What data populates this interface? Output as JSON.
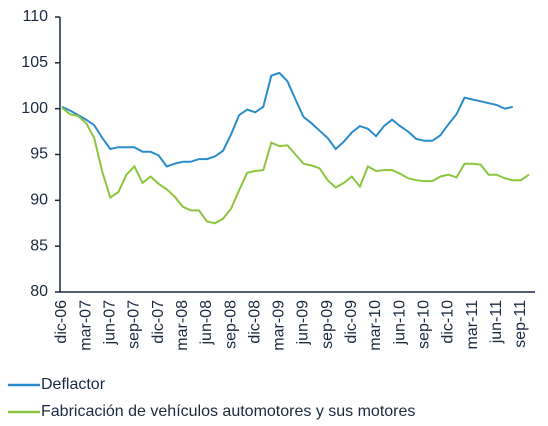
{
  "chart_data": {
    "type": "line",
    "categories": [
      "dic-06",
      null,
      null,
      "mar-07",
      null,
      null,
      "jun-07",
      null,
      null,
      "sep-07",
      null,
      null,
      "dic-07",
      null,
      null,
      "mar-08",
      null,
      null,
      "jun-08",
      null,
      null,
      "sep-08",
      null,
      null,
      "dic-08",
      null,
      null,
      "mar-09",
      null,
      null,
      "jun-09",
      null,
      null,
      "sep-09",
      null,
      null,
      "dic-09",
      null,
      null,
      "mar-10",
      null,
      null,
      "jun-10",
      null,
      null,
      "sep-10",
      null,
      null,
      "dic-10",
      null,
      null,
      "mar-11",
      null,
      null,
      "jun-11",
      null,
      null,
      "sep-11",
      null
    ],
    "series": [
      {
        "name": "Deflactor",
        "color": "#2a8ccb",
        "values": [
          100.2,
          99.8,
          99.3,
          98.8,
          98.2,
          96.8,
          95.6,
          95.8,
          95.8,
          95.8,
          95.3,
          95.3,
          94.9,
          93.7,
          94.0,
          94.2,
          94.2,
          94.5,
          94.5,
          94.8,
          95.4,
          97.2,
          99.3,
          99.9,
          99.6,
          100.2,
          103.6,
          103.9,
          103.0,
          101.0,
          99.1,
          98.4,
          97.6,
          96.8,
          95.6,
          96.4,
          97.4,
          98.1,
          97.8,
          97.0,
          98.1,
          98.8,
          98.1,
          97.5,
          96.7,
          96.5,
          96.5,
          97.1,
          98.3,
          99.4,
          101.2,
          101.0,
          100.8,
          100.6,
          100.4,
          100.0,
          100.2,
          null,
          null
        ]
      },
      {
        "name": "Fabricación de vehículos automotores y sus motores",
        "color": "#8cc63f",
        "values": [
          100.1,
          99.4,
          99.2,
          98.4,
          96.8,
          93.1,
          90.3,
          90.9,
          92.8,
          93.7,
          91.9,
          92.6,
          91.8,
          91.2,
          90.4,
          89.3,
          88.9,
          88.9,
          87.7,
          87.5,
          88.0,
          89.1,
          91.1,
          93.0,
          93.2,
          93.3,
          96.3,
          95.9,
          96.0,
          95.0,
          94.0,
          93.8,
          93.5,
          92.2,
          91.4,
          91.9,
          92.6,
          91.5,
          93.7,
          93.2,
          93.3,
          93.3,
          92.9,
          92.4,
          92.2,
          92.1,
          92.1,
          92.6,
          92.8,
          92.5,
          94.0,
          94.0,
          93.9,
          92.8,
          92.8,
          92.4,
          92.2,
          92.2,
          92.8
        ]
      }
    ],
    "ylim": [
      80,
      110
    ],
    "yticks": [
      80,
      85,
      90,
      95,
      100,
      105,
      110
    ]
  }
}
